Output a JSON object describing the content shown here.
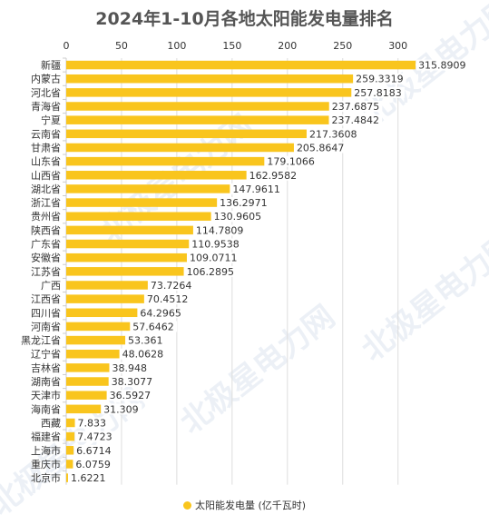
{
  "chart_data": {
    "type": "bar",
    "orientation": "horizontal",
    "title": "2024年1-10月各地太阳能发电量排名",
    "categories": [
      "新疆",
      "内蒙古",
      "河北省",
      "青海省",
      "宁夏",
      "云南省",
      "甘肃省",
      "山东省",
      "山西省",
      "湖北省",
      "浙江省",
      "贵州省",
      "陕西省",
      "广东省",
      "安徽省",
      "江苏省",
      "广西",
      "江西省",
      "四川省",
      "河南省",
      "黑龙江省",
      "辽宁省",
      "吉林省",
      "湖南省",
      "天津市",
      "海南省",
      "西藏",
      "福建省",
      "上海市",
      "重庆市",
      "北京市"
    ],
    "series": [
      {
        "name": "太阳能发电量 (亿千瓦时)",
        "values": [
          315.8909,
          259.3319,
          257.8183,
          237.6875,
          237.4842,
          217.3608,
          205.8647,
          179.1066,
          162.9582,
          147.9611,
          136.2971,
          130.9605,
          114.7809,
          110.9538,
          109.0711,
          106.2895,
          73.7264,
          70.4512,
          64.2965,
          57.6462,
          53.361,
          48.0628,
          38.948,
          38.3077,
          36.5927,
          31.309,
          7.833,
          7.4723,
          6.6714,
          6.0759,
          1.6221
        ],
        "labels": [
          "315.8909",
          "259.3319",
          "257.8183",
          "237.6875",
          "237.4842",
          "217.3608",
          "205.8647",
          "179.1066",
          "162.9582",
          "147.9611",
          "136.2971",
          "130.9605",
          "114.7809",
          "110.9538",
          "109.0711",
          "106.2895",
          "73.7264",
          "70.4512",
          "64.2965",
          "57.6462",
          "53.361",
          "48.0628",
          "38.948",
          "38.3077",
          "36.5927",
          "31.309",
          "7.833",
          "7.4723",
          "6.6714",
          "6.0759",
          "1.6221"
        ]
      }
    ],
    "xlim": [
      0,
      330
    ],
    "xticks": [
      0,
      50,
      100,
      150,
      200,
      250,
      300
    ],
    "x_axis_position": "top",
    "grid": true,
    "legend_position": "bottom",
    "bar_color": "#f9c51d",
    "label_background": "#ffffff"
  },
  "watermark": "北极星电力网",
  "colors": {
    "grid": "#dddddd",
    "text": "#333333",
    "title": "#555555"
  }
}
